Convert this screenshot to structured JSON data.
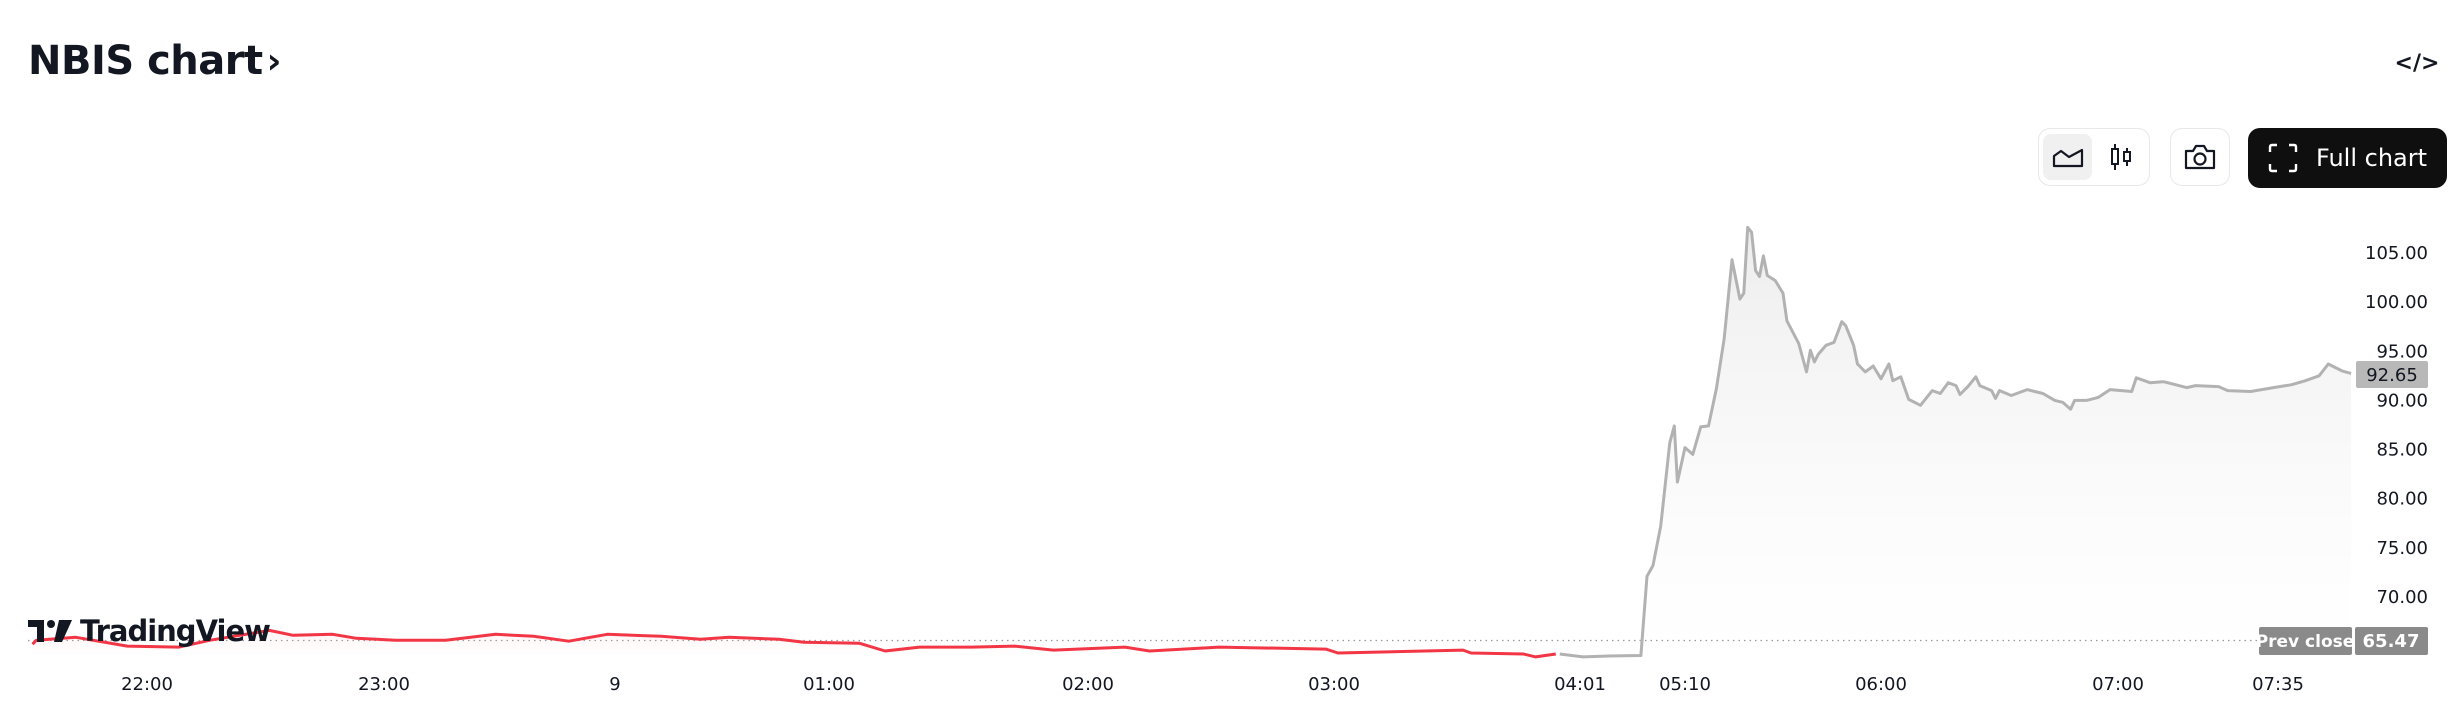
{
  "header": {
    "title": "NBIS chart",
    "title_chevron": "›",
    "embed_icon": "</>",
    "chart_type_options": [
      "area-icon",
      "candles-icon"
    ],
    "selected_chart_type": "area",
    "camera_icon": "camera-icon",
    "full_chart_label": "Full chart"
  },
  "branding": {
    "logo_text": "TradingView"
  },
  "colors": {
    "down_line": "#F23645",
    "extended_line": "#B2B2B2",
    "full_chart_bg": "#0F0F0F",
    "prev_close_label_bg": "#8A8A8A",
    "last_price_label_bg": "#B8B8B8"
  },
  "chart_data": {
    "type": "line",
    "symbol": "NBIS",
    "x_ticks": [
      "22:00",
      "23:00",
      "9",
      "01:00",
      "02:00",
      "03:00",
      "04:01",
      "05:10",
      "06:00",
      "07:00",
      "07:35"
    ],
    "y_ticks": [
      70,
      75,
      80,
      85,
      90,
      95,
      100,
      105
    ],
    "y_tick_labels": [
      "70.00",
      "75.00",
      "80.00",
      "85.00",
      "90.00",
      "95.00",
      "100.00",
      "105.00"
    ],
    "ylim": [
      65,
      108
    ],
    "grid": false,
    "prev_close": {
      "label": "Prev close",
      "value": "65.47"
    },
    "last_price": "92.65",
    "series": [
      {
        "session": "post-market",
        "color": "#F23645",
        "points": [
          [
            "21:31",
            65.1
          ],
          [
            "21:32",
            65.5
          ],
          [
            "21:42",
            65.8
          ],
          [
            "21:55",
            64.9
          ],
          [
            "22:08",
            64.8
          ],
          [
            "22:16",
            65.5
          ],
          [
            "22:31",
            66.5
          ],
          [
            "22:37",
            66.0
          ],
          [
            "22:47",
            66.1
          ],
          [
            "22:53",
            65.7
          ],
          [
            "23:03",
            65.5
          ],
          [
            "23:16",
            65.5
          ],
          [
            "23:29",
            66.1
          ],
          [
            "23:39",
            65.9
          ],
          [
            "23:48",
            65.4
          ],
          [
            "23:58",
            66.1
          ],
          [
            "00:13",
            65.9
          ],
          [
            "00:24",
            65.6
          ],
          [
            "00:32",
            65.8
          ],
          [
            "00:46",
            65.6
          ],
          [
            "00:53",
            65.3
          ],
          [
            "01:07",
            65.2
          ],
          [
            "01:13",
            64.4
          ],
          [
            "01:21",
            64.8
          ],
          [
            "01:33",
            64.8
          ],
          [
            "01:43",
            64.9
          ],
          [
            "01:52",
            64.5
          ],
          [
            "02:09",
            64.8
          ],
          [
            "02:15",
            64.4
          ],
          [
            "02:32",
            64.8
          ],
          [
            "02:58",
            64.6
          ],
          [
            "03:01",
            64.2
          ],
          [
            "03:12",
            64.3
          ],
          [
            "03:32",
            64.5
          ],
          [
            "03:34",
            64.2
          ],
          [
            "03:47",
            64.1
          ],
          [
            "03:50",
            63.8
          ],
          [
            "03:55",
            64.1
          ]
        ]
      },
      {
        "session": "pre-market",
        "color": "#B2B2B2",
        "points": [
          [
            "03:56",
            64.1
          ],
          [
            "04:03",
            63.8
          ],
          [
            "04:20",
            63.9
          ],
          [
            "04:41",
            63.95
          ],
          [
            "04:45",
            72.0
          ],
          [
            "04:49",
            73.1
          ],
          [
            "04:54",
            77.1
          ],
          [
            "05:00",
            85.6
          ],
          [
            "05:03",
            87.3
          ],
          [
            "05:05",
            81.6
          ],
          [
            "05:10",
            85.1
          ],
          [
            "05:12",
            84.4
          ],
          [
            "05:14",
            87.2
          ],
          [
            "05:16",
            87.3
          ],
          [
            "05:18",
            91.1
          ],
          [
            "05:20",
            96.2
          ],
          [
            "05:22",
            104.2
          ],
          [
            "05:24",
            100.2
          ],
          [
            "05:25",
            100.8
          ],
          [
            "05:26",
            107.5
          ],
          [
            "05:27",
            107.0
          ],
          [
            "05:28",
            103.1
          ],
          [
            "05:29",
            102.5
          ],
          [
            "05:30",
            104.6
          ],
          [
            "05:31",
            102.6
          ],
          [
            "05:33",
            102.1
          ],
          [
            "05:35",
            100.8
          ],
          [
            "05:36",
            98.0
          ],
          [
            "05:39",
            95.7
          ],
          [
            "05:41",
            92.8
          ],
          [
            "05:42",
            95.0
          ],
          [
            "05:43",
            93.8
          ],
          [
            "05:44",
            94.6
          ],
          [
            "05:46",
            95.5
          ],
          [
            "05:48",
            95.8
          ],
          [
            "05:50",
            97.9
          ],
          [
            "05:51",
            97.5
          ],
          [
            "05:53",
            95.5
          ],
          [
            "05:54",
            93.6
          ],
          [
            "05:56",
            92.8
          ],
          [
            "05:58",
            93.4
          ],
          [
            "06:00",
            92.1
          ],
          [
            "06:02",
            93.6
          ],
          [
            "06:03",
            91.9
          ],
          [
            "06:05",
            92.3
          ],
          [
            "06:07",
            90.0
          ],
          [
            "06:10",
            89.4
          ],
          [
            "06:13",
            90.9
          ],
          [
            "06:15",
            90.6
          ],
          [
            "06:17",
            91.7
          ],
          [
            "06:19",
            91.4
          ],
          [
            "06:20",
            90.5
          ],
          [
            "06:22",
            91.3
          ],
          [
            "06:24",
            92.3
          ],
          [
            "06:25",
            91.4
          ],
          [
            "06:28",
            90.9
          ],
          [
            "06:29",
            90.1
          ],
          [
            "06:30",
            90.9
          ],
          [
            "06:33",
            90.4
          ],
          [
            "06:37",
            91.0
          ],
          [
            "06:41",
            90.6
          ],
          [
            "06:44",
            89.9
          ],
          [
            "06:46",
            89.7
          ],
          [
            "06:48",
            89.0
          ],
          [
            "06:49",
            89.9
          ],
          [
            "06:52",
            89.9
          ],
          [
            "06:55",
            90.2
          ],
          [
            "06:58",
            91.0
          ],
          [
            "07:03",
            90.8
          ],
          [
            "07:04",
            92.2
          ],
          [
            "07:07",
            91.7
          ],
          [
            "07:10",
            91.8
          ],
          [
            "07:15",
            91.2
          ],
          [
            "07:17",
            91.4
          ],
          [
            "07:22",
            91.3
          ],
          [
            "07:24",
            90.9
          ],
          [
            "07:29",
            90.8
          ],
          [
            "07:34",
            91.2
          ],
          [
            "07:38",
            91.5
          ],
          [
            "07:41",
            91.9
          ],
          [
            "07:44",
            92.4
          ],
          [
            "07:46",
            93.6
          ],
          [
            "07:49",
            92.9
          ],
          [
            "07:51",
            92.65
          ]
        ]
      }
    ]
  }
}
